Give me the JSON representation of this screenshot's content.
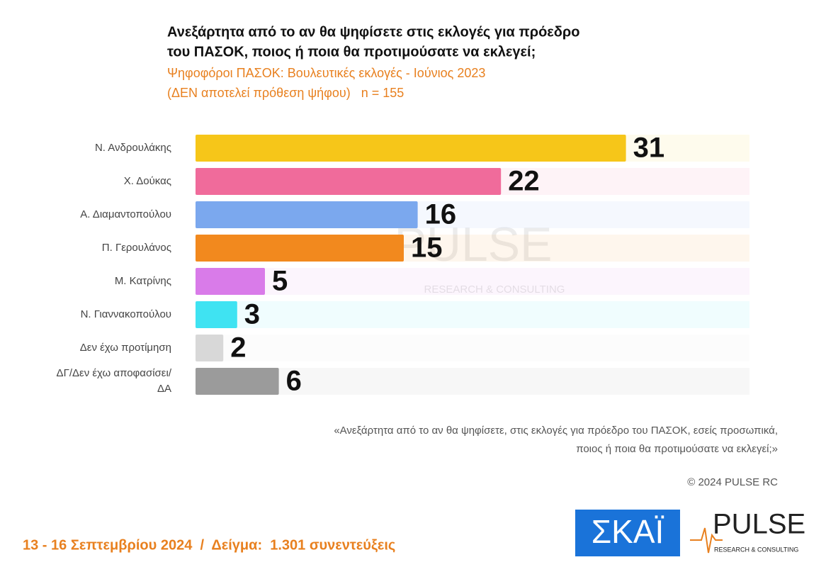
{
  "chart_data": {
    "type": "bar",
    "orientation": "horizontal",
    "title": [
      "Ανεξάρτητα από το αν θα ψηφίσετε στις εκλογές για πρόεδρο",
      "του ΠΑΣΟΚ, ποιος ή ποια θα προτιμούσατε να εκλεγεί;"
    ],
    "subtitle": [
      "Ψηφοφόροι ΠΑΣΟΚ: Βουλευτικές εκλογές - Ιούνιος 2023",
      "(ΔΕΝ αποτελεί πρόθεση ψήφου)   n = 155"
    ],
    "categories": [
      "Ν. Ανδρουλάκης",
      "Χ. Δούκας",
      "Α. Διαμαντοπούλου",
      "Π. Γερουλάνος",
      "Μ. Κατρίνης",
      "Ν. Γιαννακοπούλου",
      "Δεν έχω προτίμηση",
      "ΔΓ/Δεν έχω αποφασίσει/ΔΑ"
    ],
    "values": [
      31,
      22,
      16,
      15,
      5,
      3,
      2,
      6
    ],
    "colors": [
      "#f6c619",
      "#f06b9b",
      "#7ba8ee",
      "#f2891e",
      "#d97be9",
      "#3fe3f2",
      "#d8d8d8",
      "#9b9b9b"
    ],
    "note": [
      "«Ανεξάρτητα από το αν θα ψηφίσετε, στις εκλογές για πρόεδρο του ΠΑΣΟΚ, εσείς προσωπικά,",
      "ποιος ή ποια θα προτιμούσατε να εκλεγεί;»"
    ],
    "copyright": "© 2024 PULSE RC",
    "footer": "13 - 16 Σεπτεμβρίου 2024  /  Δείγμα:  1.301 συνεντεύξεις",
    "watermark": {
      "name": "PULSE",
      "tagline": "RESEARCH & CONSULTING"
    },
    "logos": {
      "skai": "ΣΚΑΪ",
      "pulse": "PULSE",
      "pulse_tagline": "RESEARCH & CONSULTING"
    }
  }
}
